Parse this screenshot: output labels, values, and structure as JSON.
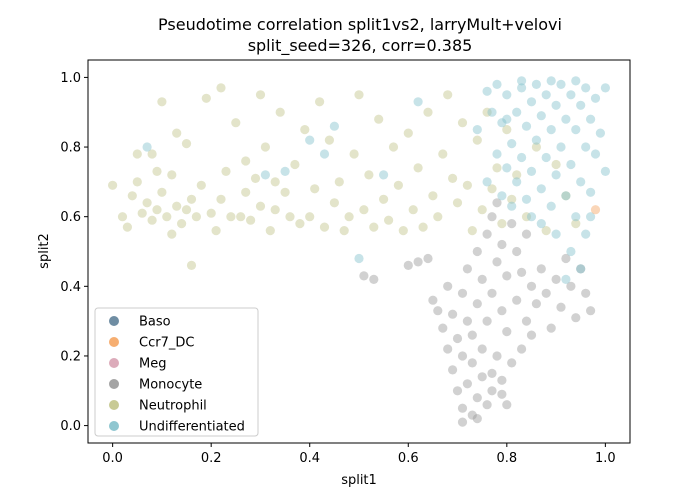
{
  "chart_data": {
    "type": "scatter",
    "title_line1": "Pseudotime correlation split1vs2, larryMult+velovi",
    "title_line2": "split_seed=326, corr=0.385",
    "xlabel": "split1",
    "ylabel": "split2",
    "xlim": [
      -0.05,
      1.05
    ],
    "ylim": [
      -0.05,
      1.05
    ],
    "xticks": [
      0.0,
      0.2,
      0.4,
      0.6,
      0.8,
      1.0
    ],
    "yticks": [
      0.0,
      0.2,
      0.4,
      0.6,
      0.8,
      1.0
    ],
    "xtick_labels": [
      "0.0",
      "0.2",
      "0.4",
      "0.6",
      "0.8",
      "1.0"
    ],
    "ytick_labels": [
      "0.0",
      "0.2",
      "0.4",
      "0.6",
      "0.8",
      "1.0"
    ],
    "grid": false,
    "legend_position": "lower-left",
    "point_alpha": 0.45,
    "legend": [
      {
        "name": "Baso",
        "color": "#5f8199"
      },
      {
        "name": "Ccr7_DC",
        "color": "#f5a562"
      },
      {
        "name": "Meg",
        "color": "#d8a2b2"
      },
      {
        "name": "Monocyte",
        "color": "#9a9a9a"
      },
      {
        "name": "Neutrophil",
        "color": "#c2c48a"
      },
      {
        "name": "Undifferentiated",
        "color": "#83c0cb"
      }
    ],
    "series": [
      {
        "name": "Neutrophil",
        "color": "#c2c48a",
        "points": [
          [
            0.0,
            0.69
          ],
          [
            0.02,
            0.6
          ],
          [
            0.03,
            0.57
          ],
          [
            0.04,
            0.66
          ],
          [
            0.05,
            0.7
          ],
          [
            0.06,
            0.61
          ],
          [
            0.07,
            0.64
          ],
          [
            0.08,
            0.78
          ],
          [
            0.08,
            0.59
          ],
          [
            0.09,
            0.62
          ],
          [
            0.1,
            0.93
          ],
          [
            0.1,
            0.67
          ],
          [
            0.11,
            0.6
          ],
          [
            0.12,
            0.55
          ],
          [
            0.12,
            0.72
          ],
          [
            0.13,
            0.63
          ],
          [
            0.14,
            0.58
          ],
          [
            0.15,
            0.81
          ],
          [
            0.15,
            0.62
          ],
          [
            0.16,
            0.65
          ],
          [
            0.17,
            0.6
          ],
          [
            0.18,
            0.69
          ],
          [
            0.19,
            0.94
          ],
          [
            0.2,
            0.61
          ],
          [
            0.21,
            0.56
          ],
          [
            0.22,
            0.97
          ],
          [
            0.22,
            0.65
          ],
          [
            0.23,
            0.73
          ],
          [
            0.24,
            0.6
          ],
          [
            0.25,
            0.87
          ],
          [
            0.26,
            0.6
          ],
          [
            0.27,
            0.67
          ],
          [
            0.28,
            0.59
          ],
          [
            0.29,
            0.71
          ],
          [
            0.3,
            0.95
          ],
          [
            0.3,
            0.63
          ],
          [
            0.31,
            0.8
          ],
          [
            0.32,
            0.56
          ],
          [
            0.33,
            0.62
          ],
          [
            0.34,
            0.9
          ],
          [
            0.35,
            0.67
          ],
          [
            0.36,
            0.6
          ],
          [
            0.37,
            0.75
          ],
          [
            0.38,
            0.58
          ],
          [
            0.39,
            0.85
          ],
          [
            0.4,
            0.6
          ],
          [
            0.41,
            0.68
          ],
          [
            0.42,
            0.93
          ],
          [
            0.43,
            0.57
          ],
          [
            0.44,
            0.82
          ],
          [
            0.45,
            0.64
          ],
          [
            0.46,
            0.7
          ],
          [
            0.47,
            0.56
          ],
          [
            0.48,
            0.6
          ],
          [
            0.49,
            0.78
          ],
          [
            0.5,
            0.95
          ],
          [
            0.51,
            0.62
          ],
          [
            0.52,
            0.72
          ],
          [
            0.53,
            0.57
          ],
          [
            0.54,
            0.88
          ],
          [
            0.55,
            0.65
          ],
          [
            0.56,
            0.59
          ],
          [
            0.57,
            0.8
          ],
          [
            0.58,
            0.69
          ],
          [
            0.59,
            0.56
          ],
          [
            0.6,
            0.84
          ],
          [
            0.61,
            0.62
          ],
          [
            0.62,
            0.74
          ],
          [
            0.63,
            0.57
          ],
          [
            0.64,
            0.9
          ],
          [
            0.65,
            0.66
          ],
          [
            0.66,
            0.6
          ],
          [
            0.67,
            0.78
          ],
          [
            0.68,
            0.95
          ],
          [
            0.69,
            0.71
          ],
          [
            0.7,
            0.64
          ],
          [
            0.71,
            0.87
          ],
          [
            0.72,
            0.69
          ],
          [
            0.73,
            0.56
          ],
          [
            0.74,
            0.82
          ],
          [
            0.75,
            0.62
          ],
          [
            0.76,
            0.9
          ],
          [
            0.77,
            0.68
          ],
          [
            0.78,
            0.74
          ],
          [
            0.79,
            0.58
          ],
          [
            0.8,
            0.85
          ],
          [
            0.81,
            0.65
          ],
          [
            0.82,
            0.72
          ],
          [
            0.84,
            0.6
          ],
          [
            0.86,
            0.8
          ],
          [
            0.88,
            0.56
          ],
          [
            0.9,
            0.75
          ],
          [
            0.92,
            0.66
          ],
          [
            0.94,
            0.58
          ],
          [
            0.16,
            0.46
          ],
          [
            0.05,
            0.78
          ],
          [
            0.09,
            0.73
          ],
          [
            0.13,
            0.84
          ],
          [
            0.27,
            0.76
          ],
          [
            0.33,
            0.7
          ]
        ]
      },
      {
        "name": "Monocyte",
        "color": "#9a9a9a",
        "points": [
          [
            0.51,
            0.43
          ],
          [
            0.53,
            0.42
          ],
          [
            0.6,
            0.46
          ],
          [
            0.62,
            0.47
          ],
          [
            0.64,
            0.48
          ],
          [
            0.65,
            0.36
          ],
          [
            0.66,
            0.33
          ],
          [
            0.67,
            0.28
          ],
          [
            0.68,
            0.22
          ],
          [
            0.68,
            0.4
          ],
          [
            0.69,
            0.16
          ],
          [
            0.69,
            0.32
          ],
          [
            0.7,
            0.1
          ],
          [
            0.7,
            0.25
          ],
          [
            0.71,
            0.05
          ],
          [
            0.71,
            0.2
          ],
          [
            0.71,
            0.38
          ],
          [
            0.72,
            0.12
          ],
          [
            0.72,
            0.3
          ],
          [
            0.72,
            0.45
          ],
          [
            0.73,
            0.03
          ],
          [
            0.73,
            0.18
          ],
          [
            0.73,
            0.26
          ],
          [
            0.74,
            0.08
          ],
          [
            0.74,
            0.35
          ],
          [
            0.74,
            0.5
          ],
          [
            0.75,
            0.14
          ],
          [
            0.75,
            0.22
          ],
          [
            0.75,
            0.42
          ],
          [
            0.76,
            0.06
          ],
          [
            0.76,
            0.3
          ],
          [
            0.76,
            0.55
          ],
          [
            0.77,
            0.1
          ],
          [
            0.77,
            0.38
          ],
          [
            0.77,
            0.6
          ],
          [
            0.78,
            0.2
          ],
          [
            0.78,
            0.47
          ],
          [
            0.78,
            0.64
          ],
          [
            0.79,
            0.13
          ],
          [
            0.79,
            0.33
          ],
          [
            0.79,
            0.52
          ],
          [
            0.8,
            0.06
          ],
          [
            0.8,
            0.27
          ],
          [
            0.8,
            0.43
          ],
          [
            0.81,
            0.18
          ],
          [
            0.81,
            0.58
          ],
          [
            0.82,
            0.36
          ],
          [
            0.82,
            0.5
          ],
          [
            0.83,
            0.22
          ],
          [
            0.83,
            0.44
          ],
          [
            0.84,
            0.3
          ],
          [
            0.84,
            0.55
          ],
          [
            0.85,
            0.26
          ],
          [
            0.85,
            0.4
          ],
          [
            0.86,
            0.35
          ],
          [
            0.87,
            0.45
          ],
          [
            0.88,
            0.38
          ],
          [
            0.89,
            0.28
          ],
          [
            0.9,
            0.42
          ],
          [
            0.91,
            0.34
          ],
          [
            0.92,
            0.48
          ],
          [
            0.93,
            0.4
          ],
          [
            0.94,
            0.31
          ],
          [
            0.95,
            0.45
          ],
          [
            0.96,
            0.38
          ],
          [
            0.97,
            0.33
          ],
          [
            0.71,
            0.01
          ],
          [
            0.74,
            0.02
          ],
          [
            0.77,
            0.15
          ],
          [
            0.79,
            0.09
          ]
        ]
      },
      {
        "name": "Undifferentiated",
        "color": "#83c0cb",
        "points": [
          [
            0.07,
            0.8
          ],
          [
            0.31,
            0.72
          ],
          [
            0.35,
            0.73
          ],
          [
            0.4,
            0.82
          ],
          [
            0.43,
            0.78
          ],
          [
            0.45,
            0.86
          ],
          [
            0.5,
            0.48
          ],
          [
            0.55,
            0.72
          ],
          [
            0.62,
            0.93
          ],
          [
            0.74,
            0.85
          ],
          [
            0.76,
            0.96
          ],
          [
            0.76,
            0.7
          ],
          [
            0.77,
            0.9
          ],
          [
            0.78,
            0.78
          ],
          [
            0.78,
            0.98
          ],
          [
            0.79,
            0.66
          ],
          [
            0.79,
            0.87
          ],
          [
            0.8,
            0.74
          ],
          [
            0.8,
            0.95
          ],
          [
            0.81,
            0.81
          ],
          [
            0.81,
            0.63
          ],
          [
            0.82,
            0.9
          ],
          [
            0.82,
            0.7
          ],
          [
            0.83,
            0.97
          ],
          [
            0.83,
            0.77
          ],
          [
            0.84,
            0.86
          ],
          [
            0.84,
            0.65
          ],
          [
            0.85,
            0.93
          ],
          [
            0.85,
            0.73
          ],
          [
            0.86,
            0.82
          ],
          [
            0.86,
            0.98
          ],
          [
            0.87,
            0.68
          ],
          [
            0.87,
            0.89
          ],
          [
            0.88,
            0.77
          ],
          [
            0.88,
            0.95
          ],
          [
            0.89,
            0.85
          ],
          [
            0.89,
            0.63
          ],
          [
            0.9,
            0.92
          ],
          [
            0.9,
            0.72
          ],
          [
            0.91,
            0.98
          ],
          [
            0.91,
            0.8
          ],
          [
            0.92,
            0.88
          ],
          [
            0.92,
            0.66
          ],
          [
            0.93,
            0.95
          ],
          [
            0.93,
            0.75
          ],
          [
            0.94,
            0.85
          ],
          [
            0.94,
            0.6
          ],
          [
            0.95,
            0.92
          ],
          [
            0.95,
            0.7
          ],
          [
            0.96,
            0.97
          ],
          [
            0.96,
            0.8
          ],
          [
            0.97,
            0.88
          ],
          [
            0.97,
            0.67
          ],
          [
            0.98,
            0.94
          ],
          [
            0.98,
            0.78
          ],
          [
            0.99,
            0.84
          ],
          [
            1.0,
            0.97
          ],
          [
            1.0,
            0.73
          ],
          [
            0.95,
            0.45
          ],
          [
            0.93,
            0.5
          ],
          [
            0.92,
            0.42
          ],
          [
            0.9,
            0.55
          ],
          [
            0.87,
            0.58
          ],
          [
            0.85,
            0.6
          ],
          [
            0.96,
            0.55
          ],
          [
            0.97,
            0.6
          ],
          [
            0.94,
            0.99
          ],
          [
            0.89,
            0.99
          ],
          [
            0.83,
            0.99
          ],
          [
            0.8,
            0.88
          ]
        ]
      },
      {
        "name": "Ccr7_DC",
        "color": "#f5a562",
        "points": [
          [
            0.98,
            0.62
          ]
        ]
      },
      {
        "name": "Baso",
        "color": "#5f8199",
        "points": []
      },
      {
        "name": "Meg",
        "color": "#d8a2b2",
        "points": []
      }
    ]
  }
}
